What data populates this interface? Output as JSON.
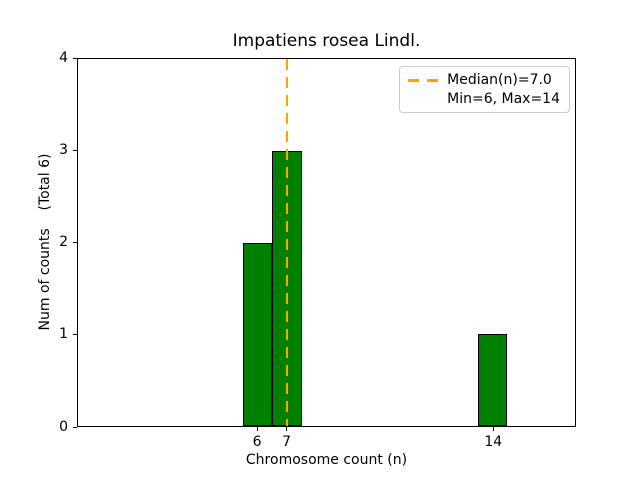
{
  "chart_data": {
    "type": "bar",
    "title": "Impatiens rosea Lindl.",
    "xlabel": "Chromosome count (n)",
    "ylabel": "Num of counts    (Total 6)",
    "categories": [
      6,
      7,
      14
    ],
    "values": [
      2,
      3,
      1
    ],
    "bar_width": 1,
    "bar_color": "#008000",
    "bar_edge_color": "#000000",
    "xlim": [
      -0.1,
      16.8
    ],
    "ylim": [
      0,
      4
    ],
    "xticks": [
      6,
      7,
      14
    ],
    "yticks": [
      0,
      1,
      2,
      3,
      4
    ],
    "grid": false,
    "median_line": {
      "x": 7.0,
      "color": "#FFA500",
      "style": "dashed"
    },
    "legend": {
      "position": "upper right",
      "entries": [
        {
          "marker": "dashed-line",
          "color": "#FFA500",
          "label": "Median(n)=7.0"
        },
        {
          "marker": "none",
          "color": "",
          "label": "Min=6, Max=14"
        }
      ]
    }
  }
}
